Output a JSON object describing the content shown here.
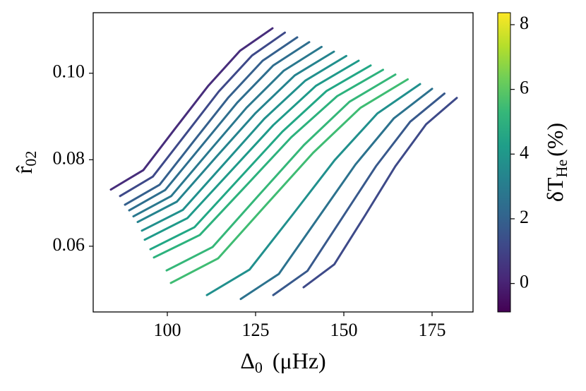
{
  "chart_data": {
    "type": "line",
    "x_label": {
      "symbol": "Δ",
      "subscript": "0",
      "unit": "(μHz)"
    },
    "y_label": {
      "symbol": "r̂",
      "subscript": "02"
    },
    "xlim": [
      79,
      186.6
    ],
    "xticks": [
      100,
      125,
      150,
      175
    ],
    "ylim": [
      0.0448,
      0.114
    ],
    "yticks": [
      0.06,
      0.08,
      {
        "value": 0.1,
        "label": "0.10"
      }
    ],
    "line_width": 3,
    "colorbar": {
      "label": {
        "symbol": "δT",
        "subscript": "He",
        "unit": "(%)"
      },
      "lim": [
        -0.88,
        8.37
      ],
      "ticks": [
        0,
        2,
        4,
        6,
        8
      ],
      "colormap": [
        "#440154",
        "#482878",
        "#3e4989",
        "#31688e",
        "#26828e",
        "#1f9e89",
        "#35b779",
        "#6ece58",
        "#b5de2b",
        "#fde725"
      ]
    },
    "series": [
      {
        "color": "#472d7b",
        "x": [
          84.0,
          93.2,
          102.3,
          111.5,
          120.6,
          129.8
        ],
        "values": [
          0.0731,
          0.0776,
          0.0873,
          0.097,
          0.1052,
          0.1104
        ]
      },
      {
        "color": "#3e4989",
        "x": [
          86.6,
          95.9,
          105.3,
          114.6,
          124.0,
          133.3
        ],
        "values": [
          0.0716,
          0.0761,
          0.086,
          0.0958,
          0.1041,
          0.1094
        ]
      },
      {
        "color": "#35608d",
        "x": [
          88.0,
          97.8,
          107.5,
          117.3,
          127.0,
          136.8
        ],
        "values": [
          0.0696,
          0.0742,
          0.0843,
          0.0944,
          0.1029,
          0.1083
        ]
      },
      {
        "color": "#2e6e8e",
        "x": [
          89.2,
          99.4,
          109.6,
          119.8,
          130.0,
          140.2
        ],
        "values": [
          0.0683,
          0.073,
          0.0831,
          0.0932,
          0.1018,
          0.1072
        ]
      },
      {
        "color": "#2a788e",
        "x": [
          90.4,
          101.1,
          111.7,
          122.4,
          133.0,
          143.7
        ],
        "values": [
          0.0669,
          0.0716,
          0.0818,
          0.092,
          0.1006,
          0.1061
        ]
      },
      {
        "color": "#25838e",
        "x": [
          91.6,
          102.7,
          113.8,
          125.0,
          136.1,
          147.2
        ],
        "values": [
          0.0656,
          0.0703,
          0.0806,
          0.0908,
          0.0995,
          0.105
        ]
      },
      {
        "color": "#21908d",
        "x": [
          92.8,
          104.4,
          116.0,
          127.5,
          139.1,
          150.7
        ],
        "values": [
          0.0636,
          0.0684,
          0.079,
          0.0895,
          0.0983,
          0.104
        ]
      },
      {
        "color": "#1f9a8a",
        "x": [
          93.6,
          105.7,
          117.8,
          130.0,
          142.1,
          154.2
        ],
        "values": [
          0.0615,
          0.0665,
          0.0772,
          0.088,
          0.0971,
          0.1029
        ]
      },
      {
        "color": "#22a785",
        "x": [
          95.2,
          107.7,
          120.2,
          132.6,
          145.1,
          157.6
        ],
        "values": [
          0.0593,
          0.0644,
          0.0755,
          0.0865,
          0.0959,
          0.1018
        ]
      },
      {
        "color": "#2db27d",
        "x": [
          96.2,
          109.2,
          122.2,
          135.1,
          148.1,
          161.1
        ],
        "values": [
          0.0574,
          0.0626,
          0.0739,
          0.0852,
          0.0947,
          0.1008
        ]
      },
      {
        "color": "#35b779",
        "x": [
          99.8,
          112.8,
          125.7,
          138.7,
          151.6,
          164.6
        ],
        "values": [
          0.0544,
          0.0598,
          0.0716,
          0.0834,
          0.0934,
          0.0997
        ]
      },
      {
        "color": "#3fbc73",
        "x": [
          101.0,
          114.4,
          127.8,
          141.3,
          154.7,
          168.1
        ],
        "values": [
          0.0515,
          0.0572,
          0.0694,
          0.0816,
          0.092,
          0.0986
        ]
      },
      {
        "color": "#21908d",
        "x": [
          111.2,
          123.3,
          135.4,
          147.4,
          159.5,
          171.6
        ],
        "values": [
          0.0487,
          0.0546,
          0.0672,
          0.0799,
          0.0907,
          0.0975
        ]
      },
      {
        "color": "#2c728e",
        "x": [
          120.8,
          131.6,
          142.5,
          153.3,
          164.2,
          175.0
        ],
        "values": [
          0.0478,
          0.0536,
          0.0663,
          0.0789,
          0.0896,
          0.0964
        ]
      },
      {
        "color": "#38598c",
        "x": [
          130.0,
          139.7,
          149.4,
          159.1,
          168.8,
          178.5
        ],
        "values": [
          0.0487,
          0.0543,
          0.0664,
          0.0785,
          0.0888,
          0.0953
        ]
      },
      {
        "color": "#3e4a89",
        "x": [
          138.6,
          147.3,
          156.0,
          164.6,
          173.3,
          182.0
        ],
        "values": [
          0.0505,
          0.0558,
          0.0671,
          0.0785,
          0.0882,
          0.0943
        ]
      }
    ]
  }
}
